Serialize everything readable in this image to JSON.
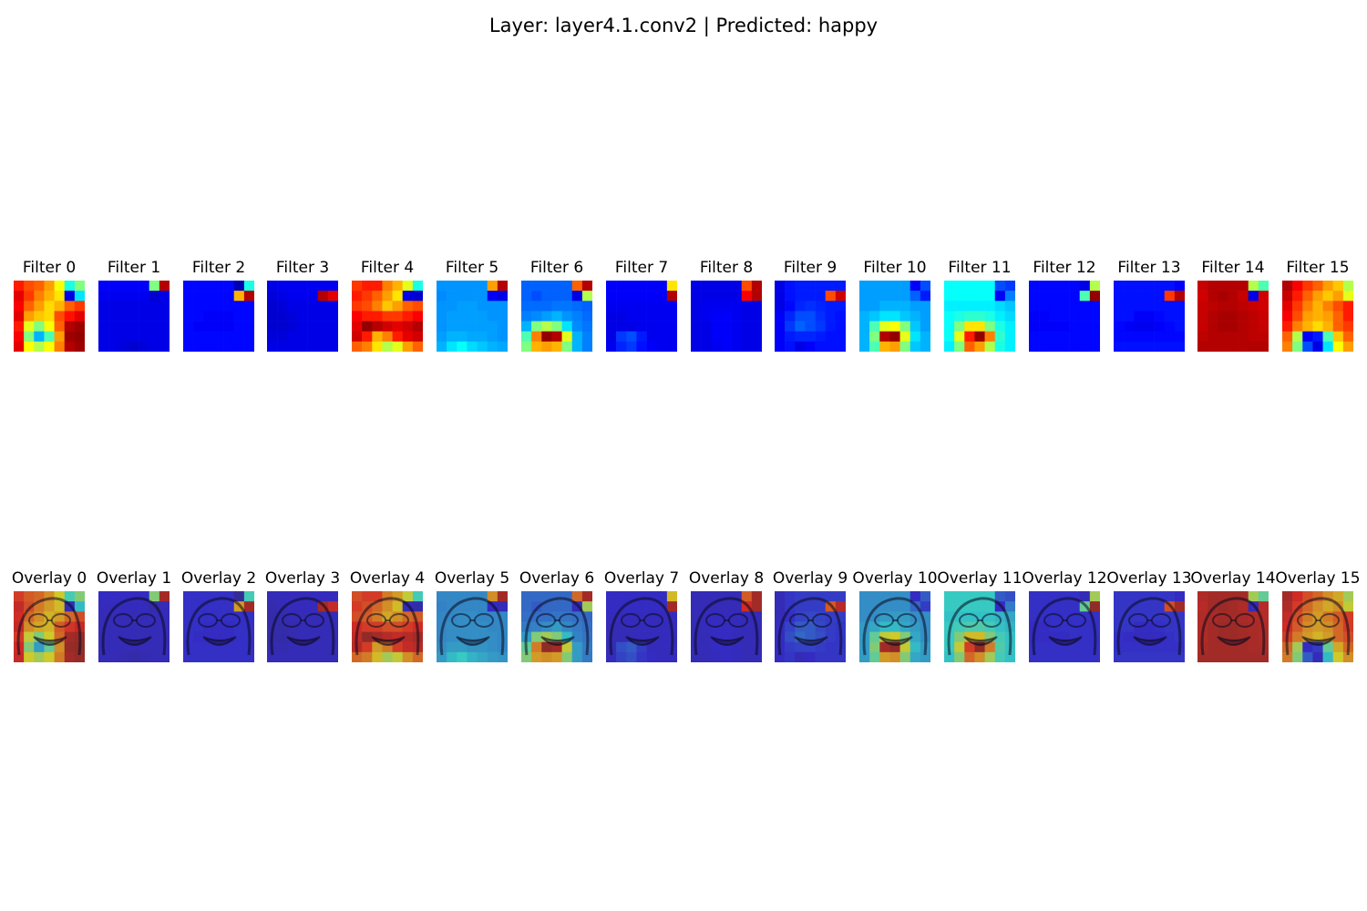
{
  "title": "Layer: layer4.1.conv2 | Predicted: happy",
  "filters": [
    {
      "label": "Filter 0"
    },
    {
      "label": "Filter 1"
    },
    {
      "label": "Filter 2"
    },
    {
      "label": "Filter 3"
    },
    {
      "label": "Filter 4"
    },
    {
      "label": "Filter 5"
    },
    {
      "label": "Filter 6"
    },
    {
      "label": "Filter 7"
    },
    {
      "label": "Filter 8"
    },
    {
      "label": "Filter 9"
    },
    {
      "label": "Filter 10"
    },
    {
      "label": "Filter 11"
    },
    {
      "label": "Filter 12"
    },
    {
      "label": "Filter 13"
    },
    {
      "label": "Filter 14"
    },
    {
      "label": "Filter 15"
    }
  ],
  "overlays": [
    {
      "label": "Overlay 0"
    },
    {
      "label": "Overlay 1"
    },
    {
      "label": "Overlay 2"
    },
    {
      "label": "Overlay 3"
    },
    {
      "label": "Overlay 4"
    },
    {
      "label": "Overlay 5"
    },
    {
      "label": "Overlay 6"
    },
    {
      "label": "Overlay 7"
    },
    {
      "label": "Overlay 8"
    },
    {
      "label": "Overlay 9"
    },
    {
      "label": "Overlay 10"
    },
    {
      "label": "Overlay 11"
    },
    {
      "label": "Overlay 12"
    },
    {
      "label": "Overlay 13"
    },
    {
      "label": "Overlay 14"
    },
    {
      "label": "Overlay 15"
    }
  ],
  "colormap": "jet",
  "grids": [
    [
      [
        0.85,
        0.8,
        0.78,
        0.72,
        0.62,
        0.4,
        0.5
      ],
      [
        0.9,
        0.82,
        0.75,
        0.7,
        0.65,
        0.1,
        0.35
      ],
      [
        0.88,
        0.78,
        0.72,
        0.66,
        0.7,
        0.78,
        0.82
      ],
      [
        0.9,
        0.72,
        0.68,
        0.66,
        0.8,
        0.86,
        0.9
      ],
      [
        0.85,
        0.6,
        0.5,
        0.62,
        0.78,
        0.95,
        0.97
      ],
      [
        0.88,
        0.5,
        0.3,
        0.45,
        0.72,
        0.97,
        0.98
      ],
      [
        0.9,
        0.62,
        0.55,
        0.62,
        0.75,
        0.95,
        0.97
      ]
    ],
    [
      [
        0.12,
        0.12,
        0.12,
        0.12,
        0.12,
        0.5,
        0.95
      ],
      [
        0.11,
        0.11,
        0.11,
        0.11,
        0.11,
        0.08,
        0.1
      ],
      [
        0.1,
        0.1,
        0.1,
        0.1,
        0.1,
        0.1,
        0.1
      ],
      [
        0.1,
        0.1,
        0.1,
        0.1,
        0.1,
        0.1,
        0.1
      ],
      [
        0.1,
        0.1,
        0.1,
        0.1,
        0.1,
        0.1,
        0.1
      ],
      [
        0.1,
        0.1,
        0.1,
        0.1,
        0.1,
        0.1,
        0.1
      ],
      [
        0.1,
        0.1,
        0.09,
        0.08,
        0.09,
        0.1,
        0.1
      ]
    ],
    [
      [
        0.13,
        0.13,
        0.13,
        0.13,
        0.13,
        0.05,
        0.4
      ],
      [
        0.13,
        0.13,
        0.13,
        0.13,
        0.13,
        0.7,
        0.95
      ],
      [
        0.13,
        0.13,
        0.13,
        0.13,
        0.13,
        0.13,
        0.13
      ],
      [
        0.13,
        0.13,
        0.12,
        0.12,
        0.12,
        0.13,
        0.13
      ],
      [
        0.13,
        0.12,
        0.12,
        0.12,
        0.12,
        0.13,
        0.13
      ],
      [
        0.13,
        0.13,
        0.13,
        0.13,
        0.13,
        0.13,
        0.13
      ],
      [
        0.13,
        0.13,
        0.13,
        0.13,
        0.13,
        0.13,
        0.13
      ]
    ],
    [
      [
        0.1,
        0.11,
        0.11,
        0.11,
        0.11,
        0.11,
        0.11
      ],
      [
        0.09,
        0.1,
        0.11,
        0.11,
        0.11,
        0.95,
        0.9
      ],
      [
        0.08,
        0.09,
        0.1,
        0.1,
        0.1,
        0.1,
        0.1
      ],
      [
        0.08,
        0.08,
        0.09,
        0.1,
        0.1,
        0.1,
        0.1
      ],
      [
        0.08,
        0.08,
        0.09,
        0.1,
        0.1,
        0.1,
        0.1
      ],
      [
        0.09,
        0.09,
        0.1,
        0.1,
        0.1,
        0.1,
        0.1
      ],
      [
        0.1,
        0.1,
        0.1,
        0.1,
        0.1,
        0.1,
        0.1
      ]
    ],
    [
      [
        0.82,
        0.85,
        0.85,
        0.75,
        0.7,
        0.6,
        0.4
      ],
      [
        0.85,
        0.82,
        0.78,
        0.72,
        0.65,
        0.1,
        0.08
      ],
      [
        0.82,
        0.8,
        0.75,
        0.68,
        0.72,
        0.78,
        0.8
      ],
      [
        0.88,
        0.85,
        0.85,
        0.82,
        0.82,
        0.85,
        0.88
      ],
      [
        0.9,
        0.98,
        0.95,
        0.92,
        0.9,
        0.92,
        0.95
      ],
      [
        0.92,
        0.85,
        0.7,
        0.75,
        0.85,
        0.9,
        0.92
      ],
      [
        0.78,
        0.75,
        0.65,
        0.55,
        0.6,
        0.72,
        0.78
      ]
    ],
    [
      [
        0.27,
        0.27,
        0.27,
        0.27,
        0.27,
        0.72,
        0.95
      ],
      [
        0.26,
        0.27,
        0.27,
        0.27,
        0.27,
        0.12,
        0.1
      ],
      [
        0.27,
        0.27,
        0.28,
        0.28,
        0.27,
        0.27,
        0.27
      ],
      [
        0.27,
        0.28,
        0.28,
        0.28,
        0.28,
        0.27,
        0.27
      ],
      [
        0.27,
        0.28,
        0.28,
        0.28,
        0.28,
        0.28,
        0.27
      ],
      [
        0.28,
        0.3,
        0.3,
        0.29,
        0.29,
        0.28,
        0.27
      ],
      [
        0.3,
        0.35,
        0.38,
        0.34,
        0.32,
        0.3,
        0.29
      ]
    ],
    [
      [
        0.22,
        0.22,
        0.22,
        0.22,
        0.22,
        0.78,
        0.95
      ],
      [
        0.22,
        0.2,
        0.22,
        0.22,
        0.22,
        0.1,
        0.55
      ],
      [
        0.23,
        0.23,
        0.23,
        0.24,
        0.24,
        0.23,
        0.22
      ],
      [
        0.25,
        0.26,
        0.28,
        0.3,
        0.27,
        0.25,
        0.23
      ],
      [
        0.3,
        0.5,
        0.55,
        0.5,
        0.35,
        0.26,
        0.24
      ],
      [
        0.45,
        0.75,
        0.98,
        0.95,
        0.6,
        0.3,
        0.25
      ],
      [
        0.5,
        0.7,
        0.72,
        0.7,
        0.5,
        0.3,
        0.25
      ]
    ],
    [
      [
        0.12,
        0.12,
        0.12,
        0.12,
        0.12,
        0.12,
        0.65
      ],
      [
        0.12,
        0.12,
        0.12,
        0.12,
        0.12,
        0.12,
        0.95
      ],
      [
        0.11,
        0.11,
        0.11,
        0.11,
        0.11,
        0.11,
        0.11
      ],
      [
        0.1,
        0.1,
        0.11,
        0.11,
        0.11,
        0.11,
        0.11
      ],
      [
        0.1,
        0.1,
        0.1,
        0.11,
        0.11,
        0.11,
        0.11
      ],
      [
        0.1,
        0.18,
        0.2,
        0.15,
        0.11,
        0.11,
        0.11
      ],
      [
        0.11,
        0.16,
        0.18,
        0.14,
        0.12,
        0.11,
        0.11
      ]
    ],
    [
      [
        0.1,
        0.1,
        0.1,
        0.1,
        0.1,
        0.8,
        0.95
      ],
      [
        0.1,
        0.1,
        0.1,
        0.1,
        0.1,
        0.88,
        0.95
      ],
      [
        0.1,
        0.11,
        0.11,
        0.11,
        0.11,
        0.1,
        0.1
      ],
      [
        0.1,
        0.11,
        0.12,
        0.12,
        0.11,
        0.1,
        0.1
      ],
      [
        0.1,
        0.1,
        0.12,
        0.12,
        0.11,
        0.1,
        0.1
      ],
      [
        0.1,
        0.1,
        0.12,
        0.12,
        0.11,
        0.1,
        0.1
      ],
      [
        0.1,
        0.1,
        0.11,
        0.12,
        0.11,
        0.1,
        0.1
      ]
    ],
    [
      [
        0.1,
        0.14,
        0.15,
        0.15,
        0.15,
        0.15,
        0.15
      ],
      [
        0.1,
        0.14,
        0.15,
        0.15,
        0.15,
        0.8,
        0.92
      ],
      [
        0.1,
        0.13,
        0.16,
        0.17,
        0.16,
        0.15,
        0.15
      ],
      [
        0.12,
        0.16,
        0.2,
        0.2,
        0.17,
        0.15,
        0.14
      ],
      [
        0.12,
        0.18,
        0.22,
        0.2,
        0.18,
        0.15,
        0.14
      ],
      [
        0.12,
        0.15,
        0.16,
        0.16,
        0.15,
        0.14,
        0.14
      ],
      [
        0.12,
        0.14,
        0.1,
        0.12,
        0.14,
        0.14,
        0.14
      ]
    ],
    [
      [
        0.28,
        0.28,
        0.28,
        0.28,
        0.28,
        0.12,
        0.2
      ],
      [
        0.28,
        0.28,
        0.28,
        0.28,
        0.28,
        0.22,
        0.15
      ],
      [
        0.28,
        0.28,
        0.3,
        0.3,
        0.3,
        0.28,
        0.28
      ],
      [
        0.3,
        0.32,
        0.35,
        0.35,
        0.32,
        0.3,
        0.28
      ],
      [
        0.3,
        0.45,
        0.6,
        0.62,
        0.5,
        0.32,
        0.28
      ],
      [
        0.3,
        0.5,
        0.95,
        0.98,
        0.6,
        0.35,
        0.3
      ],
      [
        0.3,
        0.45,
        0.7,
        0.72,
        0.5,
        0.32,
        0.3
      ]
    ],
    [
      [
        0.38,
        0.38,
        0.38,
        0.38,
        0.38,
        0.2,
        0.18
      ],
      [
        0.38,
        0.38,
        0.38,
        0.38,
        0.38,
        0.12,
        0.25
      ],
      [
        0.36,
        0.36,
        0.36,
        0.36,
        0.36,
        0.34,
        0.32
      ],
      [
        0.38,
        0.4,
        0.42,
        0.42,
        0.4,
        0.36,
        0.34
      ],
      [
        0.38,
        0.5,
        0.65,
        0.65,
        0.5,
        0.4,
        0.36
      ],
      [
        0.38,
        0.6,
        0.85,
        0.98,
        0.75,
        0.42,
        0.36
      ],
      [
        0.36,
        0.5,
        0.78,
        0.72,
        0.55,
        0.4,
        0.36
      ]
    ],
    [
      [
        0.13,
        0.13,
        0.13,
        0.13,
        0.13,
        0.1,
        0.55
      ],
      [
        0.13,
        0.13,
        0.13,
        0.13,
        0.13,
        0.45,
        0.98
      ],
      [
        0.13,
        0.13,
        0.13,
        0.13,
        0.13,
        0.13,
        0.13
      ],
      [
        0.12,
        0.12,
        0.13,
        0.13,
        0.13,
        0.13,
        0.13
      ],
      [
        0.12,
        0.12,
        0.12,
        0.12,
        0.13,
        0.13,
        0.13
      ],
      [
        0.13,
        0.13,
        0.13,
        0.13,
        0.13,
        0.13,
        0.13
      ],
      [
        0.13,
        0.13,
        0.13,
        0.13,
        0.13,
        0.13,
        0.13
      ]
    ],
    [
      [
        0.14,
        0.14,
        0.14,
        0.14,
        0.14,
        0.14,
        0.12
      ],
      [
        0.14,
        0.14,
        0.14,
        0.14,
        0.14,
        0.82,
        0.95
      ],
      [
        0.14,
        0.14,
        0.14,
        0.14,
        0.14,
        0.14,
        0.14
      ],
      [
        0.14,
        0.14,
        0.12,
        0.12,
        0.13,
        0.14,
        0.14
      ],
      [
        0.13,
        0.12,
        0.11,
        0.11,
        0.12,
        0.13,
        0.14
      ],
      [
        0.13,
        0.13,
        0.13,
        0.13,
        0.13,
        0.13,
        0.13
      ],
      [
        0.14,
        0.14,
        0.14,
        0.14,
        0.14,
        0.14,
        0.14
      ]
    ],
    [
      [
        0.93,
        0.95,
        0.95,
        0.95,
        0.95,
        0.55,
        0.45
      ],
      [
        0.92,
        0.95,
        0.96,
        0.95,
        0.93,
        0.1,
        0.92
      ],
      [
        0.93,
        0.94,
        0.95,
        0.95,
        0.94,
        0.93,
        0.92
      ],
      [
        0.93,
        0.95,
        0.96,
        0.96,
        0.95,
        0.94,
        0.93
      ],
      [
        0.93,
        0.95,
        0.96,
        0.96,
        0.95,
        0.94,
        0.93
      ],
      [
        0.94,
        0.95,
        0.95,
        0.95,
        0.95,
        0.94,
        0.94
      ],
      [
        0.95,
        0.95,
        0.95,
        0.95,
        0.95,
        0.95,
        0.95
      ]
    ],
    [
      [
        0.95,
        0.88,
        0.82,
        0.78,
        0.72,
        0.68,
        0.55
      ],
      [
        0.93,
        0.85,
        0.78,
        0.72,
        0.68,
        0.72,
        0.6
      ],
      [
        0.9,
        0.82,
        0.75,
        0.7,
        0.75,
        0.8,
        0.85
      ],
      [
        0.88,
        0.8,
        0.72,
        0.7,
        0.72,
        0.78,
        0.85
      ],
      [
        0.85,
        0.75,
        0.7,
        0.66,
        0.7,
        0.78,
        0.82
      ],
      [
        0.78,
        0.55,
        0.12,
        0.15,
        0.45,
        0.68,
        0.78
      ],
      [
        0.75,
        0.5,
        0.2,
        0.1,
        0.35,
        0.62,
        0.72
      ]
    ]
  ]
}
